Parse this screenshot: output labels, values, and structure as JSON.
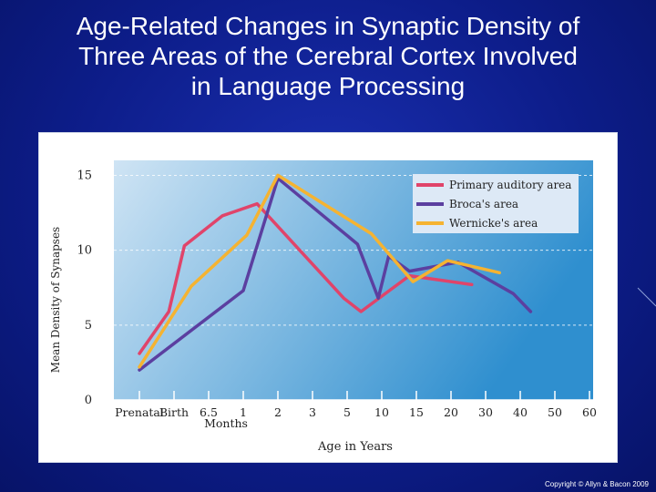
{
  "slide": {
    "title_lines": [
      "Age-Related Changes in Synaptic Density of",
      "Three Areas of the Cerebral Cortex Involved",
      "in Language Processing"
    ],
    "copyright": "Copyright © Allyn & Bacon 2009"
  },
  "chart_data": {
    "type": "line",
    "title": "Age-Related Changes in Synaptic Density of Three Areas of the Cerebral Cortex Involved in Language Processing",
    "xlabel": "Age in Years",
    "ylabel": "Mean Density of Synapses",
    "ylim": [
      0,
      16
    ],
    "yticks": [
      0,
      5,
      10,
      15
    ],
    "x_categories": [
      "Prenatal",
      "Birth",
      "6.5",
      "1",
      "2",
      "3",
      "5",
      "10",
      "15",
      "20",
      "30",
      "40",
      "50",
      "60"
    ],
    "x_sublabel": "Months",
    "x_sublabel_under": [
      "6.5",
      "1"
    ],
    "legend_position": "top-right",
    "colors": {
      "auditory": "#e0446a",
      "broca": "#5b3fa0",
      "wernicke": "#f5b331",
      "plot_bg_start": "#cfe4f4",
      "plot_bg_end": "#2f8fcf"
    },
    "series": [
      {
        "key": "auditory",
        "name": "Primary auditory area",
        "color": "#e0446a",
        "points": [
          [
            0,
            3.1
          ],
          [
            0.85,
            5.9
          ],
          [
            1.3,
            10.3
          ],
          [
            2.4,
            12.3
          ],
          [
            3.4,
            13.1
          ],
          [
            5.9,
            6.8
          ],
          [
            6.4,
            5.9
          ],
          [
            7.8,
            8.3
          ],
          [
            9.6,
            7.7
          ]
        ]
      },
      {
        "key": "broca",
        "name": "Broca's area",
        "color": "#5b3fa0",
        "points": [
          [
            0,
            2.0
          ],
          [
            3.0,
            7.3
          ],
          [
            4.0,
            14.8
          ],
          [
            6.3,
            10.4
          ],
          [
            6.9,
            6.8
          ],
          [
            7.2,
            9.6
          ],
          [
            7.8,
            8.6
          ],
          [
            9.2,
            9.2
          ],
          [
            10.8,
            7.1
          ],
          [
            11.3,
            5.9
          ]
        ]
      },
      {
        "key": "wernicke",
        "name": "Wernicke's area",
        "color": "#f5b331",
        "points": [
          [
            0,
            2.2
          ],
          [
            1.5,
            7.6
          ],
          [
            3.1,
            11.0
          ],
          [
            4.0,
            15.0
          ],
          [
            6.7,
            11.1
          ],
          [
            7.9,
            7.9
          ],
          [
            8.9,
            9.3
          ],
          [
            10.4,
            8.5
          ]
        ]
      }
    ]
  }
}
